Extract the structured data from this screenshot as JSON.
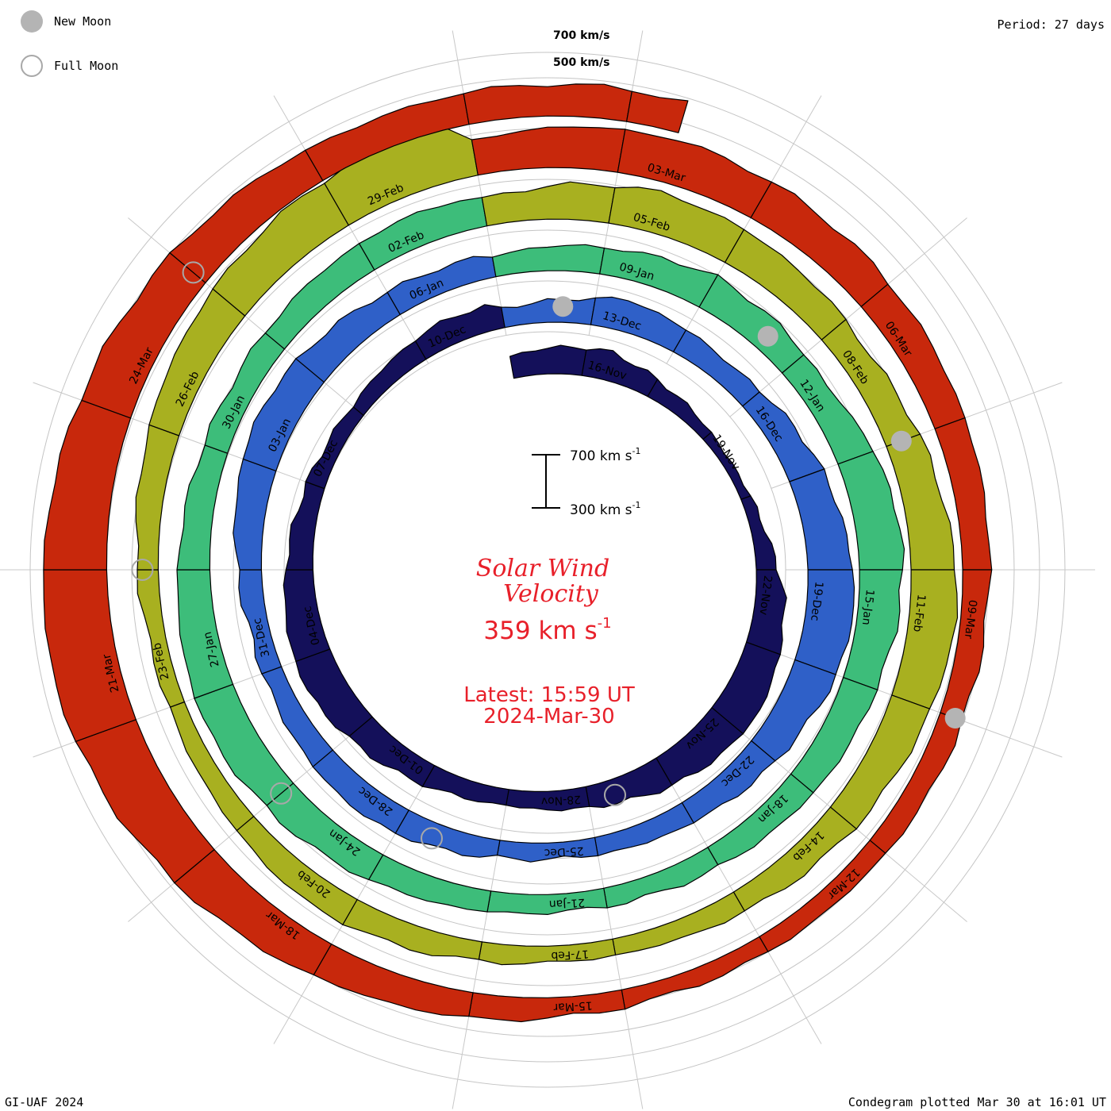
{
  "legend": {
    "new_moon": "New Moon",
    "full_moon": "Full Moon"
  },
  "period": "Period: 27 days",
  "footer_left": "GI-UAF 2024",
  "footer_right": "Condegram plotted Mar 30 at 16:01 UT",
  "scale_labels": {
    "top": "700 km/s",
    "bottom": "500 km/s"
  },
  "center": {
    "title_line1": "Solar Wind",
    "title_line2": "Velocity",
    "speed_value": "359 km s",
    "speed_exp": "-1",
    "latest": "Latest: 15:59 UT",
    "date": "2024-Mar-30",
    "scalebar_top": "700 km s",
    "scalebar_bottom": "300 km s",
    "scalebar_exp": "-1"
  },
  "colors": {
    "accent_text": "#e8202a",
    "rotations": [
      "#14105a",
      "#2a2ab0",
      "#2f60c8",
      "#2ea8a8",
      "#3dbd7a",
      "#6cc02a",
      "#a8b020",
      "#c8801c",
      "#c8280c"
    ]
  },
  "chart_data": {
    "type": "condegram",
    "title": "Solar Wind Velocity",
    "period_days": 27,
    "start_date": "2023-11-14",
    "end_date": "2024-03-30",
    "latest_speed_km_s": 359,
    "radial_scale_km_s": [
      300,
      700
    ],
    "moon_phases": {
      "new": [
        "2023-12-12",
        "2024-01-11",
        "2024-02-09",
        "2024-03-10"
      ],
      "full": [
        "2023-11-27",
        "2023-12-27",
        "2024-01-25",
        "2024-02-24",
        "2024-03-25"
      ]
    },
    "rotations": [
      {
        "name": "rotation-1",
        "start": "2023-11-14",
        "labels": [
          "16-Nov",
          "19-Nov",
          "22-Nov",
          "25-Nov",
          "28-Nov",
          "01-Dec",
          "04-Dec",
          "07-Dec",
          "10-Dec"
        ]
      },
      {
        "name": "rotation-2",
        "start": "2023-12-11",
        "labels": [
          "13-Dec",
          "16-Dec",
          "19-Dec",
          "22-Dec",
          "25-Dec",
          "28-Dec",
          "31-Dec",
          "03-Jan",
          "06-Jan"
        ]
      },
      {
        "name": "rotation-3",
        "start": "2024-01-07",
        "labels": [
          "09-Jan",
          "12-Jan",
          "15-Jan",
          "18-Jan",
          "21-Jan",
          "24-Jan",
          "27-Jan",
          "30-Jan",
          "02-Feb"
        ]
      },
      {
        "name": "rotation-4",
        "start": "2024-02-03",
        "labels": [
          "05-Feb",
          "08-Feb",
          "11-Feb",
          "14-Feb",
          "17-Feb",
          "20-Feb",
          "23-Feb",
          "26-Feb",
          "29-Feb"
        ]
      },
      {
        "name": "rotation-5",
        "start": "2024-03-01",
        "labels": [
          "03-Mar",
          "06-Mar",
          "09-Mar",
          "12-Mar",
          "15-Mar",
          "18-Mar",
          "21-Mar",
          "24-Mar"
        ]
      }
    ],
    "speed_samples_km_s": [
      [
        440,
        470,
        480,
        420,
        380,
        350,
        360,
        400,
        480,
        520,
        560,
        540,
        500,
        450,
        420,
        400,
        420,
        460,
        500,
        540,
        520,
        470,
        430,
        400,
        390,
        420,
        460
      ],
      [
        420,
        440,
        500,
        460,
        430,
        470,
        520,
        560,
        600,
        580,
        520,
        480,
        440,
        420,
        400,
        410,
        450,
        480,
        460,
        430,
        420,
        450,
        500,
        540,
        520,
        480,
        450
      ],
      [
        430,
        460,
        480,
        520,
        500,
        470,
        540,
        580,
        560,
        520,
        500,
        470,
        440,
        420,
        410,
        430,
        460,
        500,
        530,
        560,
        540,
        500,
        470,
        450,
        460,
        480,
        500
      ],
      [
        470,
        520,
        560,
        540,
        510,
        480,
        520,
        560,
        600,
        560,
        520,
        480,
        440,
        410,
        400,
        420,
        460,
        480,
        440,
        410,
        400,
        430,
        470,
        520,
        560,
        600,
        640
      ],
      [
        520,
        560,
        580,
        560,
        540,
        520,
        500,
        480,
        460,
        450,
        440,
        420,
        410,
        400,
        420,
        460,
        500,
        560,
        620,
        680,
        720,
        700,
        660,
        620,
        580,
        540,
        500
      ]
    ]
  }
}
